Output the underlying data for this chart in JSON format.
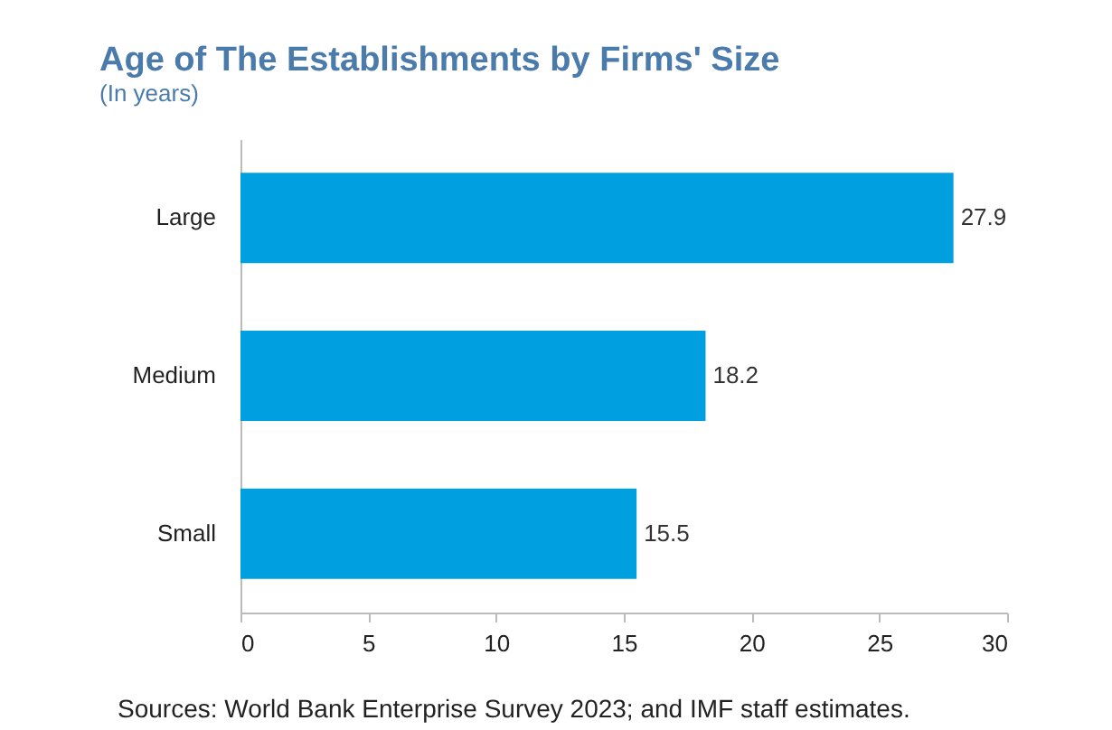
{
  "chart_data": {
    "type": "bar",
    "orientation": "horizontal",
    "title": "Age of The Establishments by Firms' Size",
    "subtitle": "(In years)",
    "categories": [
      "Large",
      "Medium",
      "Small"
    ],
    "values": [
      27.9,
      18.2,
      15.5
    ],
    "color": "#009fdf",
    "xlim": [
      0,
      30
    ],
    "xticks": [
      0,
      5,
      10,
      15,
      20,
      25,
      30
    ],
    "data_labels": true,
    "grid": false,
    "annotations": [
      "Sources: World Bank Enterprise Survey 2023; and IMF staff estimates."
    ]
  }
}
